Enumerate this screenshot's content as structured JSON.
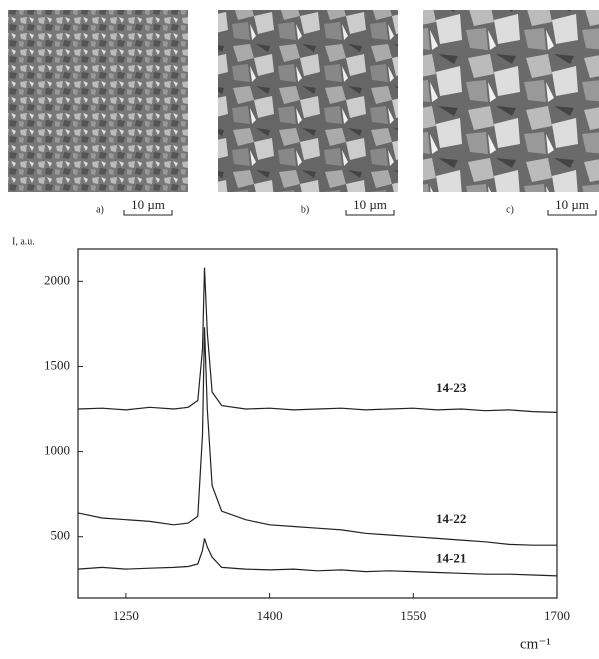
{
  "images": [
    {
      "caption": "a)",
      "scale": "10 µm"
    },
    {
      "caption": "b)",
      "scale": "10 µm"
    },
    {
      "caption": "c)",
      "scale": "10 µm"
    }
  ],
  "chart_data": {
    "type": "line",
    "y_label": "I, a.u.",
    "x_label": "cm⁻¹",
    "x": [
      1200,
      1225,
      1250,
      1275,
      1300,
      1315,
      1325,
      1330,
      1332,
      1335,
      1340,
      1350,
      1375,
      1400,
      1425,
      1450,
      1475,
      1500,
      1525,
      1550,
      1575,
      1600,
      1625,
      1650,
      1675,
      1700
    ],
    "series": [
      {
        "name": "14-23",
        "color": "#222222",
        "values": [
          1250,
          1255,
          1245,
          1260,
          1250,
          1260,
          1300,
          1600,
          2080,
          1700,
          1350,
          1270,
          1250,
          1255,
          1245,
          1250,
          1255,
          1245,
          1250,
          1255,
          1245,
          1250,
          1240,
          1245,
          1235,
          1230
        ]
      },
      {
        "name": "14-22",
        "color": "#222222",
        "values": [
          640,
          610,
          600,
          590,
          570,
          580,
          620,
          1100,
          1730,
          1250,
          800,
          650,
          600,
          570,
          560,
          550,
          540,
          520,
          510,
          500,
          490,
          480,
          470,
          455,
          450,
          450
        ]
      },
      {
        "name": "14-21",
        "color": "#222222",
        "values": [
          310,
          320,
          310,
          315,
          320,
          325,
          340,
          420,
          490,
          440,
          380,
          320,
          310,
          305,
          310,
          300,
          305,
          295,
          300,
          295,
          290,
          285,
          280,
          280,
          275,
          270
        ]
      }
    ],
    "xlim": [
      1200,
      1700
    ],
    "xticks": [
      1250,
      1400,
      1550,
      1700
    ],
    "ylim": [
      140,
      2190
    ],
    "yticks": [
      500,
      1000,
      1500,
      2000
    ],
    "grid": false
  }
}
